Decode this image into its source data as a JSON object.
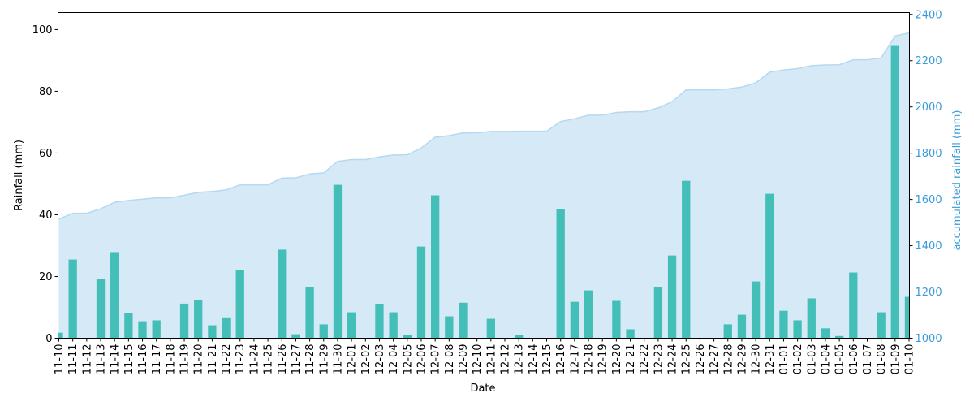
{
  "chart_data": {
    "type": "bar",
    "title": "",
    "xlabel": "Date",
    "ylabel": "Rainfall (mm)",
    "ylabel_right": "accumulated rainfall (mm)",
    "ylim": [
      0,
      105.5
    ],
    "ylim_right": [
      1000,
      2408
    ],
    "yticks": [
      0,
      20,
      40,
      60,
      80,
      100
    ],
    "yticks_right": [
      1000,
      1200,
      1400,
      1600,
      1800,
      2000,
      2200,
      2400
    ],
    "grid": false,
    "legend": null,
    "colors": {
      "bar": "#43BFB8",
      "area_fill": "#D6E9F7",
      "area_line": "#B6D8F0",
      "right_axis": "#3A9AD9"
    },
    "categories": [
      "11-10",
      "11-11",
      "11-12",
      "11-13",
      "11-14",
      "11-15",
      "11-16",
      "11-17",
      "11-18",
      "11-19",
      "11-20",
      "11-21",
      "11-22",
      "11-23",
      "11-24",
      "11-25",
      "11-26",
      "11-27",
      "11-28",
      "11-29",
      "11-30",
      "12-01",
      "12-02",
      "12-03",
      "12-04",
      "12-05",
      "12-06",
      "12-07",
      "12-08",
      "12-09",
      "12-10",
      "12-11",
      "12-12",
      "12-13",
      "12-14",
      "12-15",
      "12-16",
      "12-17",
      "12-18",
      "12-19",
      "12-20",
      "12-21",
      "12-22",
      "12-23",
      "12-24",
      "12-25",
      "12-26",
      "12-27",
      "12-28",
      "12-29",
      "12-30",
      "12-31",
      "01-01",
      "01-02",
      "01-03",
      "01-04",
      "01-05",
      "01-06",
      "01-07",
      "01-08",
      "01-09",
      "01-10"
    ],
    "series": [
      {
        "name": "Rainfall (mm)",
        "type": "bar",
        "axis": "left",
        "values": [
          1.8,
          25.5,
          0,
          19.2,
          27.9,
          8.2,
          5.5,
          5.8,
          0,
          11.2,
          12.3,
          4.2,
          6.5,
          22.1,
          0,
          0,
          28.7,
          1.3,
          16.6,
          4.5,
          49.7,
          8.4,
          0,
          11.1,
          8.4,
          1.0,
          29.7,
          46.3,
          7.1,
          11.5,
          0,
          6.3,
          0,
          1.1,
          0,
          0,
          41.8,
          11.8,
          15.5,
          0,
          12.1,
          2.9,
          0,
          16.6,
          26.8,
          51.0,
          0,
          0,
          4.5,
          7.6,
          18.4,
          46.8,
          8.9,
          5.8,
          12.9,
          3.2,
          0.7,
          21.3,
          0,
          8.4,
          94.7,
          13.4
        ]
      },
      {
        "name": "accumulated rainfall (mm)",
        "type": "area",
        "axis": "right",
        "base": 1513.2,
        "values": [
          1515.0,
          1540.5,
          1540.5,
          1559.7,
          1587.6,
          1595.8,
          1601.3,
          1607.1,
          1607.1,
          1618.3,
          1630.6,
          1634.8,
          1641.3,
          1663.4,
          1663.4,
          1663.4,
          1692.1,
          1693.4,
          1710.0,
          1714.5,
          1764.2,
          1772.6,
          1772.6,
          1783.7,
          1792.1,
          1793.1,
          1822.8,
          1869.1,
          1876.2,
          1887.7,
          1887.7,
          1894.0,
          1894.0,
          1895.1,
          1895.1,
          1895.1,
          1936.9,
          1948.7,
          1964.2,
          1964.2,
          1976.3,
          1979.2,
          1979.2,
          1995.8,
          2022.6,
          2073.6,
          2073.6,
          2073.6,
          2078.1,
          2085.7,
          2104.1,
          2150.9,
          2159.8,
          2165.6,
          2178.5,
          2181.7,
          2182.4,
          2203.7,
          2203.7,
          2212.1,
          2306.8,
          2320.2
        ]
      }
    ]
  }
}
